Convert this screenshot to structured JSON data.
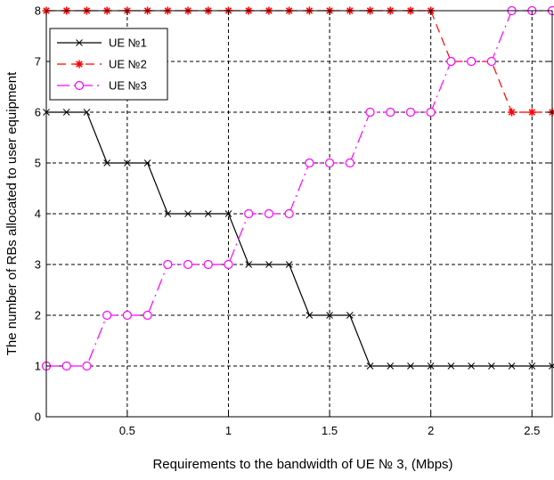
{
  "chart_data": {
    "type": "line",
    "xlabel": "Requirements to the bandwidth of UE № 3, (Mbps)",
    "ylabel": "The number of RBs allocated to user equipment",
    "xlim": [
      0.1,
      2.6
    ],
    "ylim": [
      0,
      8
    ],
    "xticks": [
      0.5,
      1,
      1.5,
      2,
      2.5
    ],
    "xtick_labels": [
      "0.5",
      "1",
      "1.5",
      "2",
      "2.5"
    ],
    "yticks": [
      0,
      1,
      2,
      3,
      4,
      5,
      6,
      7,
      8
    ],
    "ytick_labels": [
      "0",
      "1",
      "2",
      "3",
      "4",
      "5",
      "6",
      "7",
      "8"
    ],
    "grid": true,
    "legend_position": "top-left",
    "x": [
      0.1,
      0.2,
      0.3,
      0.4,
      0.5,
      0.6,
      0.7,
      0.8,
      0.9,
      1.0,
      1.1,
      1.2,
      1.3,
      1.4,
      1.5,
      1.6,
      1.7,
      1.8,
      1.9,
      2.0,
      2.1,
      2.2,
      2.3,
      2.4,
      2.5,
      2.6
    ],
    "series": [
      {
        "name": "UE №1",
        "color": "#000000",
        "line_style": "solid",
        "marker": "x",
        "values": [
          6,
          6,
          6,
          5,
          5,
          5,
          4,
          4,
          4,
          4,
          3,
          3,
          3,
          2,
          2,
          2,
          1,
          1,
          1,
          1,
          1,
          1,
          1,
          1,
          1,
          1
        ]
      },
      {
        "name": "UE №2",
        "color": "#ff0000",
        "line_style": "dashed",
        "marker": "*",
        "values": [
          8,
          8,
          8,
          8,
          8,
          8,
          8,
          8,
          8,
          8,
          8,
          8,
          8,
          8,
          8,
          8,
          8,
          8,
          8,
          8,
          7,
          7,
          7,
          6,
          6,
          6
        ]
      },
      {
        "name": "UE №3",
        "color": "#ff00ff",
        "line_style": "dashdot",
        "marker": "o",
        "values": [
          1,
          1,
          1,
          2,
          2,
          2,
          3,
          3,
          3,
          3,
          4,
          4,
          4,
          5,
          5,
          5,
          6,
          6,
          6,
          6,
          7,
          7,
          7,
          8,
          8,
          8
        ]
      }
    ]
  }
}
